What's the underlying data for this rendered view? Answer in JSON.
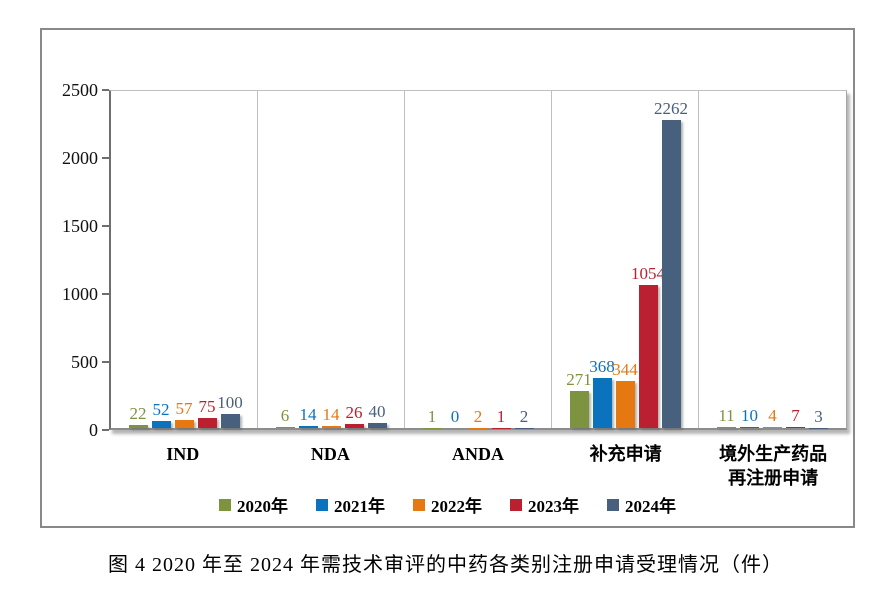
{
  "figure": {
    "caption": "图 4  2020 年至 2024 年需技术审评的中药各类别注册申请受理情况（件）"
  },
  "chart_data": {
    "type": "bar",
    "title": "",
    "xlabel": "",
    "ylabel": "",
    "categories": [
      "IND",
      "NDA",
      "ANDA",
      "补充申请",
      "境外生产药品\n再注册申请"
    ],
    "series": [
      {
        "name": "2020年",
        "color": "#7E9340",
        "values": [
          22,
          6,
          1,
          271,
          11
        ]
      },
      {
        "name": "2021年",
        "color": "#0B72BD",
        "values": [
          52,
          14,
          0,
          368,
          10
        ]
      },
      {
        "name": "2022年",
        "color": "#E67812",
        "values": [
          57,
          14,
          2,
          344,
          4
        ]
      },
      {
        "name": "2023年",
        "color": "#BB2030",
        "values": [
          75,
          26,
          1,
          1054,
          7
        ]
      },
      {
        "name": "2024年",
        "color": "#46607E",
        "values": [
          100,
          40,
          2,
          2262,
          3
        ]
      }
    ],
    "ylim": [
      0,
      2500
    ],
    "yticks": [
      0,
      500,
      1000,
      1500,
      2000,
      2500
    ],
    "grid": "vertical category separators only",
    "legend_position": "bottom",
    "value_labels": true
  }
}
